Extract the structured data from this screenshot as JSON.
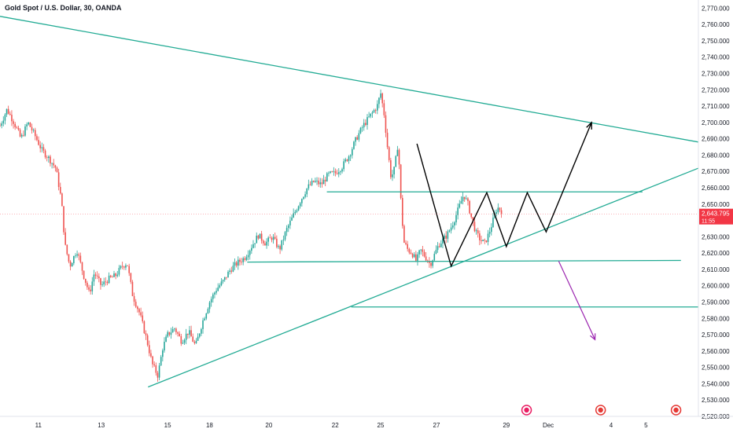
{
  "chart_data": {
    "type": "candlestick",
    "title": "Gold Spot / U.S. Dollar, 30, OANDA",
    "y_axis": {
      "min": 2520,
      "max": 2775,
      "ticks": [
        2520,
        2530,
        2540,
        2550,
        2560,
        2570,
        2580,
        2590,
        2600,
        2610,
        2620,
        2630,
        2640,
        2650,
        2660,
        2670,
        2680,
        2690,
        2700,
        2710,
        2720,
        2730,
        2740,
        2750,
        2760,
        2770
      ],
      "tick_labels": [
        "2,520.000",
        "2,530.000",
        "2,540.000",
        "2,550.000",
        "2,560.000",
        "2,570.000",
        "2,580.000",
        "2,590.000",
        "2,600.000",
        "2,610.000",
        "2,620.000",
        "2,630.000",
        "2,640.000",
        "2,650.000",
        "2,660.000",
        "2,670.000",
        "2,680.000",
        "2,690.000",
        "2,700.000",
        "2,710.000",
        "2,720.000",
        "2,730.000",
        "2,740.000",
        "2,750.000",
        "2,760.000",
        "2,770.000"
      ]
    },
    "x_axis": {
      "ticks": [
        {
          "label": "11",
          "t": 0.055
        },
        {
          "label": "13",
          "t": 0.145
        },
        {
          "label": "15",
          "t": 0.24
        },
        {
          "label": "18",
          "t": 0.3
        },
        {
          "label": "20",
          "t": 0.385
        },
        {
          "label": "22",
          "t": 0.48
        },
        {
          "label": "25",
          "t": 0.545
        },
        {
          "label": "27",
          "t": 0.625
        },
        {
          "label": "29",
          "t": 0.725
        },
        {
          "label": "Dec",
          "t": 0.785
        },
        {
          "label": "4",
          "t": 0.875
        },
        {
          "label": "5",
          "t": 0.925
        }
      ]
    },
    "price_path": [
      [
        0.0,
        2698
      ],
      [
        0.01,
        2708
      ],
      [
        0.02,
        2700
      ],
      [
        0.03,
        2690
      ],
      [
        0.04,
        2700
      ],
      [
        0.05,
        2692
      ],
      [
        0.06,
        2683
      ],
      [
        0.07,
        2678
      ],
      [
        0.08,
        2672
      ],
      [
        0.088,
        2652
      ],
      [
        0.093,
        2625
      ],
      [
        0.1,
        2612
      ],
      [
        0.11,
        2622
      ],
      [
        0.12,
        2606
      ],
      [
        0.128,
        2595
      ],
      [
        0.135,
        2608
      ],
      [
        0.145,
        2600
      ],
      [
        0.155,
        2604
      ],
      [
        0.165,
        2606
      ],
      [
        0.175,
        2612
      ],
      [
        0.182,
        2614
      ],
      [
        0.19,
        2594
      ],
      [
        0.2,
        2583
      ],
      [
        0.21,
        2567
      ],
      [
        0.218,
        2552
      ],
      [
        0.226,
        2545
      ],
      [
        0.233,
        2562
      ],
      [
        0.24,
        2570
      ],
      [
        0.25,
        2574
      ],
      [
        0.26,
        2566
      ],
      [
        0.27,
        2572
      ],
      [
        0.28,
        2563
      ],
      [
        0.29,
        2578
      ],
      [
        0.3,
        2590
      ],
      [
        0.31,
        2598
      ],
      [
        0.32,
        2603
      ],
      [
        0.33,
        2610
      ],
      [
        0.34,
        2614
      ],
      [
        0.35,
        2617
      ],
      [
        0.36,
        2624
      ],
      [
        0.37,
        2631
      ],
      [
        0.38,
        2626
      ],
      [
        0.39,
        2630
      ],
      [
        0.4,
        2622
      ],
      [
        0.41,
        2634
      ],
      [
        0.42,
        2643
      ],
      [
        0.43,
        2652
      ],
      [
        0.44,
        2660
      ],
      [
        0.45,
        2664
      ],
      [
        0.46,
        2662
      ],
      [
        0.47,
        2668
      ],
      [
        0.48,
        2669
      ],
      [
        0.49,
        2673
      ],
      [
        0.5,
        2680
      ],
      [
        0.51,
        2690
      ],
      [
        0.52,
        2698
      ],
      [
        0.53,
        2704
      ],
      [
        0.54,
        2710
      ],
      [
        0.545,
        2718
      ],
      [
        0.55,
        2705
      ],
      [
        0.555,
        2684
      ],
      [
        0.56,
        2666
      ],
      [
        0.565,
        2672
      ],
      [
        0.57,
        2688
      ],
      [
        0.574,
        2652
      ],
      [
        0.578,
        2627
      ],
      [
        0.584,
        2622
      ],
      [
        0.59,
        2620
      ],
      [
        0.596,
        2615
      ],
      [
        0.602,
        2622
      ],
      [
        0.61,
        2617
      ],
      [
        0.616,
        2613
      ],
      [
        0.622,
        2619
      ],
      [
        0.628,
        2625
      ],
      [
        0.634,
        2628
      ],
      [
        0.64,
        2631
      ],
      [
        0.646,
        2636
      ],
      [
        0.652,
        2642
      ],
      [
        0.658,
        2649
      ],
      [
        0.664,
        2656
      ],
      [
        0.67,
        2650
      ],
      [
        0.676,
        2640
      ],
      [
        0.682,
        2632
      ],
      [
        0.688,
        2628
      ],
      [
        0.694,
        2626
      ],
      [
        0.7,
        2632
      ],
      [
        0.706,
        2640
      ],
      [
        0.712,
        2648
      ],
      [
        0.718,
        2646
      ]
    ],
    "annotations": {
      "current_price": "2,643.795",
      "countdown": "11:55"
    },
    "colors": {
      "up": "#26a69a",
      "down": "#ef5350",
      "trend": "#22ab94",
      "arrow_down": "#9c27b0",
      "path": "#000000",
      "price_label": "#f23645"
    }
  }
}
